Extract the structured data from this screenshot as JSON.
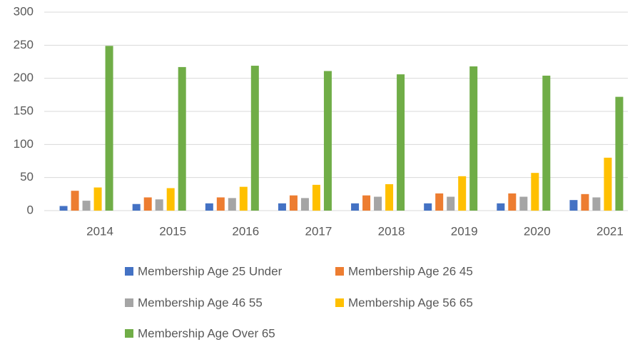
{
  "chart_data": {
    "type": "bar",
    "categories": [
      "2014",
      "2015",
      "2016",
      "2017",
      "2018",
      "2019",
      "2020",
      "2021"
    ],
    "series": [
      {
        "name": "Membership Age 25 Under",
        "color": "#4472c4",
        "values": [
          7,
          10,
          11,
          11,
          11,
          11,
          11,
          16
        ]
      },
      {
        "name": "Membership Age 26 45",
        "color": "#ed7d31",
        "values": [
          30,
          20,
          20,
          23,
          23,
          26,
          26,
          25
        ]
      },
      {
        "name": "Membership Age 46 55",
        "color": "#a5a5a5",
        "values": [
          15,
          17,
          19,
          19,
          21,
          21,
          21,
          20
        ]
      },
      {
        "name": "Membership Age 56 65",
        "color": "#ffc000",
        "values": [
          35,
          34,
          36,
          39,
          40,
          52,
          57,
          80
        ]
      },
      {
        "name": "Membership Age Over 65",
        "color": "#70ad47",
        "values": [
          249,
          217,
          219,
          211,
          206,
          218,
          204,
          172
        ]
      }
    ],
    "ylim": [
      0,
      300
    ],
    "yticks": [
      0,
      50,
      100,
      150,
      200,
      250,
      300
    ],
    "grid": true,
    "legend": "bottom"
  }
}
